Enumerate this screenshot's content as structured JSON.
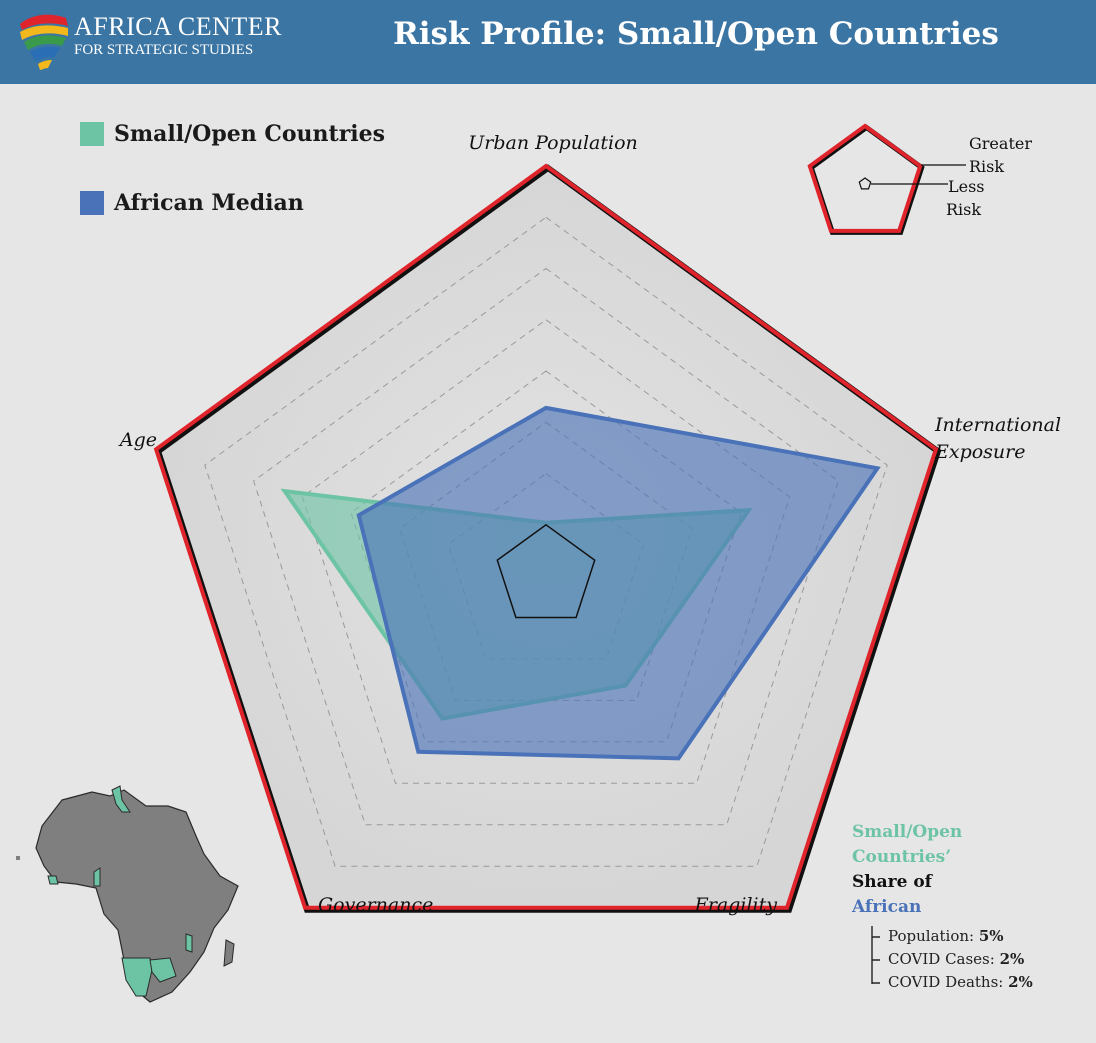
{
  "header": {
    "org_line1": "AFRICA CENTER",
    "org_line2": "FOR STRATEGIC STUDIES",
    "title": "Risk Profile: Small/Open Countries"
  },
  "legend": [
    {
      "label": "Small/Open Countries",
      "color": "#6cc4a4"
    },
    {
      "label": "African Median",
      "color": "#4a72b8"
    }
  ],
  "chart_data": {
    "type": "radar",
    "axes": [
      "Urban Population",
      "International Exposure",
      "Fragility",
      "Governance",
      "Age"
    ],
    "range": [
      0,
      1
    ],
    "levels": 8,
    "series": [
      {
        "name": "Small/Open Countries",
        "color": "#6cc4a4",
        "values": [
          0.13,
          0.52,
          0.33,
          0.43,
          0.67
        ]
      },
      {
        "name": "African Median",
        "color": "#4a72b8",
        "values": [
          0.41,
          0.85,
          0.55,
          0.53,
          0.48
        ]
      }
    ],
    "outer_color": "#e0242b"
  },
  "key": {
    "greater": "Greater",
    "greater_risk": "Risk",
    "less": "Less",
    "less_risk": "Risk"
  },
  "share": {
    "line1": "Small/Open",
    "line2": "Countries’",
    "line3": "Share of",
    "line4": "African",
    "population_label": "Population: ",
    "population_value": "5%",
    "cases_label": "COVID Cases: ",
    "cases_value": "2%",
    "deaths_label": "COVID Deaths: ",
    "deaths_value": "2%",
    "color_countries": "#6cc4a4",
    "color_african": "#4a72b8"
  }
}
